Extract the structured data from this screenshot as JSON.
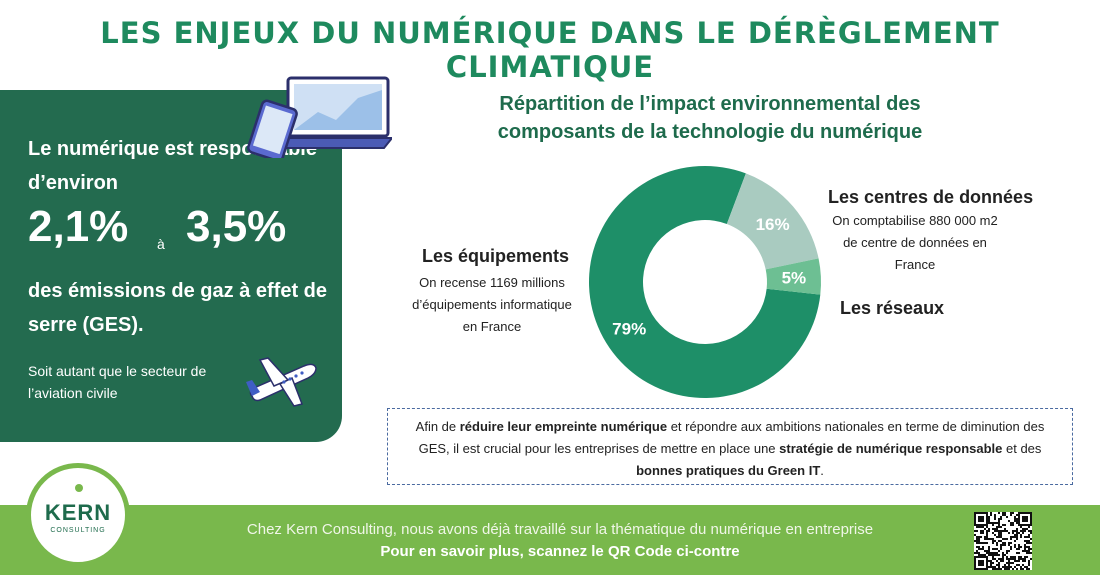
{
  "title": "LES ENJEUX DU NUMÉRIQUE DANS LE DÉRÈGLEMENT CLIMATIQUE",
  "left_card": {
    "line1": "Le numérique est responsable d’environ",
    "pct_low": "2,1%",
    "conj": "à",
    "pct_high": "3,5%",
    "line2": "des émissions de gaz à effet de serre (GES).",
    "note": "Soit autant que le secteur de l’aviation civile"
  },
  "chart": {
    "title": "Répartition de l’impact environnemental des composants de la technologie du numérique",
    "colors": {
      "equipements": "#1e8f68",
      "centres": "#a9cbc0",
      "reseaux": "#6dbf93"
    }
  },
  "chart_data": {
    "type": "pie",
    "title": "Répartition de l’impact environnemental des composants de la technologie du numérique",
    "slices": [
      {
        "name": "Les équipements",
        "value": 79,
        "label": "79%"
      },
      {
        "name": "Les centres de données",
        "value": 16,
        "label": "16%"
      },
      {
        "name": "Les réseaux",
        "value": 5,
        "label": "5%"
      }
    ]
  },
  "labels": {
    "equipements_title": "Les équipements",
    "equipements_text": "On recense 1169 millions d’équipements informatique en France",
    "centres_title": "Les centres de données",
    "centres_text": "On comptabilise 880 000 m2 de centre de données en France",
    "reseaux_title": "Les réseaux"
  },
  "info": {
    "p1": "Afin de ",
    "b1": "réduire leur empreinte numérique",
    "p2": " et répondre aux ambitions nationales en terme de diminution des GES, il est crucial pour les entreprises de mettre en place une ",
    "b2": "stratégie de numérique responsable",
    "p3": " et des ",
    "b3": "bonnes pratiques du Green IT",
    "p4": "."
  },
  "footer": {
    "line1": "Chez Kern Consulting, nous avons déjà travaillé sur la thématique du numérique en entreprise",
    "line2": "Pour en savoir plus, scannez le QR Code ci-contre"
  },
  "logo": {
    "name": "KERN",
    "sub": "CONSULTING"
  },
  "icons": {
    "devices": "laptop-phone-icon",
    "plane": "airplane-icon",
    "qr": "qr-code-icon"
  }
}
